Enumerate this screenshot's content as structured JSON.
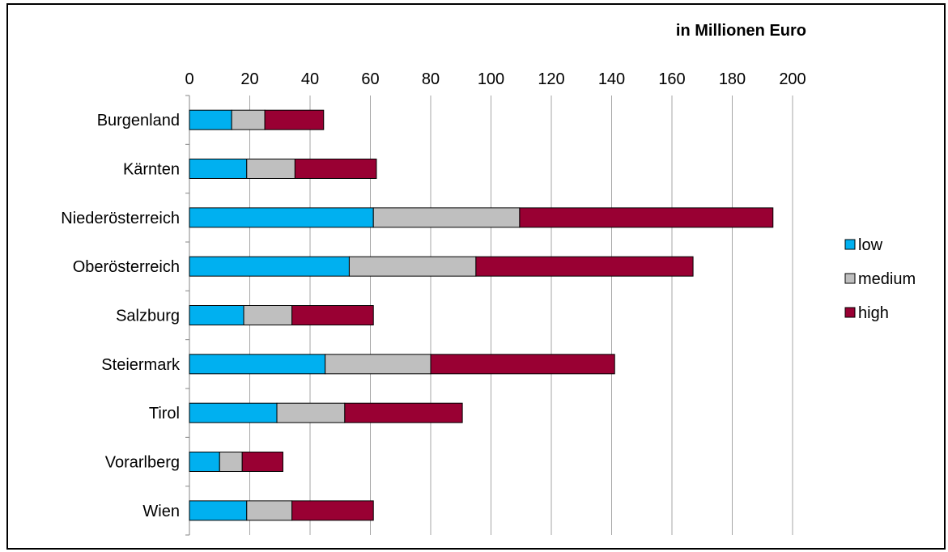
{
  "chart_data": {
    "type": "bar",
    "orientation": "horizontal",
    "stacked": true,
    "axis_title": "in Millionen Euro",
    "xlim": [
      0,
      200
    ],
    "x_ticks": [
      "0",
      "20",
      "40",
      "60",
      "80",
      "100",
      "120",
      "140",
      "160",
      "180",
      "200"
    ],
    "x_axis_position": "top",
    "grid": true,
    "legend_position": "right",
    "categories": [
      "Burgenland",
      "Kärnten",
      "Niederösterreich",
      "Oberösterreich",
      "Salzburg",
      "Steiermark",
      "Tirol",
      "Vorarlberg",
      "Wien"
    ],
    "series": [
      {
        "name": "low",
        "color": "#00b0f0",
        "values": [
          14,
          19,
          61,
          53,
          18,
          45,
          29,
          10,
          19
        ]
      },
      {
        "name": "medium",
        "color": "#bfbfbf",
        "values": [
          11,
          16,
          48.5,
          42,
          16,
          35,
          22.5,
          7.5,
          15
        ]
      },
      {
        "name": "high",
        "color": "#990033",
        "values": [
          19.5,
          27,
          84,
          72,
          27,
          61,
          39,
          13.5,
          27
        ]
      }
    ]
  }
}
